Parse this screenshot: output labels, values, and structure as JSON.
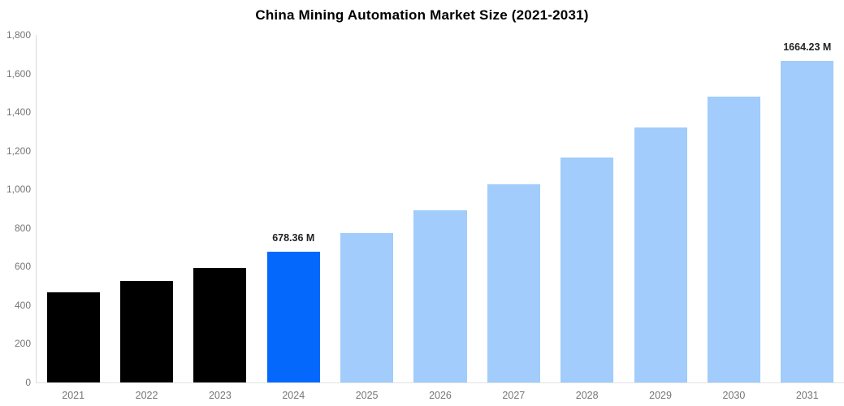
{
  "chart_data": {
    "type": "bar",
    "title": "China Mining Automation Market Size (2021-2031)",
    "categories": [
      "2021",
      "2022",
      "2023",
      "2024",
      "2025",
      "2026",
      "2027",
      "2028",
      "2029",
      "2030",
      "2031"
    ],
    "values": [
      465,
      524,
      592,
      678.36,
      774,
      893,
      1025,
      1166,
      1320,
      1480,
      1664.23
    ],
    "data_labels": [
      "",
      "",
      "",
      "678.36 M",
      "",
      "",
      "",
      "",
      "",
      "",
      "1664.23 M"
    ],
    "bar_roles": [
      "historical",
      "historical",
      "historical",
      "current",
      "forecast",
      "forecast",
      "forecast",
      "forecast",
      "forecast",
      "forecast",
      "forecast"
    ],
    "xlabel": "",
    "ylabel": "",
    "ylim": [
      0,
      1800
    ],
    "ytick_values": [
      0,
      200,
      400,
      600,
      800,
      1000,
      1200,
      1400,
      1600,
      1800
    ],
    "ytick_labels": [
      "0",
      "200",
      "400",
      "600",
      "800",
      "1,000",
      "1,200",
      "1,400",
      "1,600",
      "1,800"
    ],
    "grid": "off",
    "legend": "none",
    "colors": {
      "historical": "#000000",
      "current": "#0568fd",
      "forecast": "#a1ccfb",
      "axis_line": "#d9d9d9",
      "baseline": "#e2e2e2",
      "tick_text": "#757575",
      "value_label_text": "#222222",
      "title_text": "#000000"
    }
  }
}
